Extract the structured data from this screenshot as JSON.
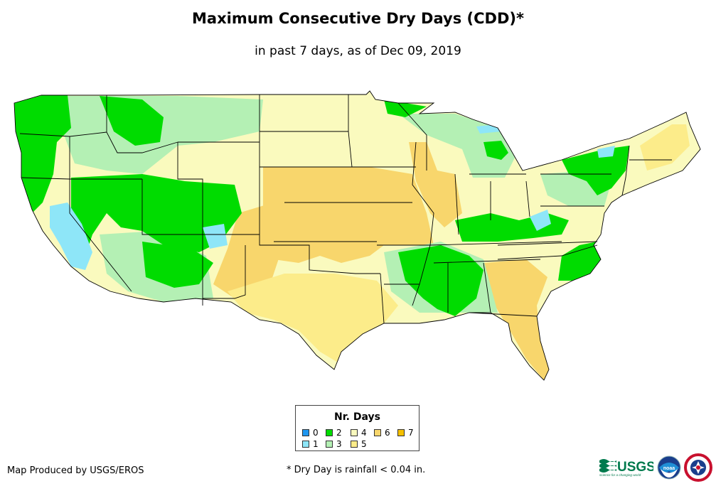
{
  "title": "Maximum Consecutive Dry Days (CDD)*",
  "subtitle": "in past 7 days, as of Dec 09, 2019",
  "legend": {
    "title": "Nr. Days",
    "items": [
      {
        "label": "0",
        "color": "#1e96f0"
      },
      {
        "label": "1",
        "color": "#8ee6f8"
      },
      {
        "label": "2",
        "color": "#00dc00"
      },
      {
        "label": "3",
        "color": "#b4f0b4"
      },
      {
        "label": "4",
        "color": "#fafabe"
      },
      {
        "label": "5",
        "color": "#fcec8a"
      },
      {
        "label": "6",
        "color": "#f8d66c"
      },
      {
        "label": "7",
        "color": "#f5c000"
      }
    ]
  },
  "footer": {
    "credit": "Map Produced by USGS/EROS",
    "footnote": "* Dry Day is rainfall < 0.04 in.",
    "usgs_logo": "USGS",
    "usgs_tagline": "science for a changing world",
    "noaa_logo": "noaa"
  },
  "colors": {
    "outline": "#000000",
    "water": "#ffffff"
  }
}
